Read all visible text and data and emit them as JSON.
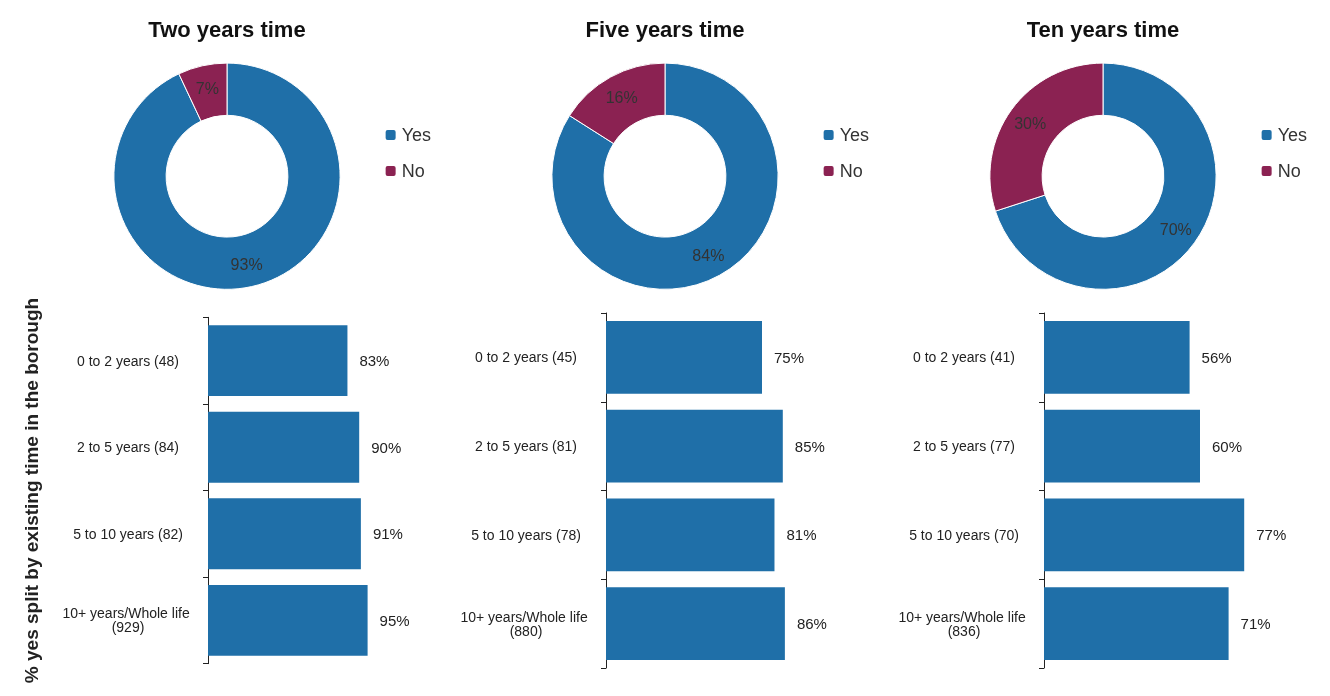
{
  "chart_data": [
    {
      "type": "donut",
      "title": "Two years time",
      "categories": [
        "Yes",
        "No"
      ],
      "values": [
        93,
        7
      ],
      "colors": [
        "#1f6fa8",
        "#8b2252"
      ],
      "legend": "right",
      "value_labels": [
        "93%",
        "7%"
      ]
    },
    {
      "type": "donut",
      "title": "Five years time",
      "categories": [
        "Yes",
        "No"
      ],
      "values": [
        84,
        16
      ],
      "colors": [
        "#1f6fa8",
        "#8b2252"
      ],
      "legend": "right",
      "value_labels": [
        "84%",
        "16%"
      ]
    },
    {
      "type": "donut",
      "title": "Ten years time",
      "categories": [
        "Yes",
        "No"
      ],
      "values": [
        70,
        30
      ],
      "colors": [
        "#1f6fa8",
        "#8b2252"
      ],
      "legend": "right",
      "value_labels": [
        "70%",
        "30%"
      ]
    },
    {
      "type": "bar",
      "orientation": "horizontal",
      "ylabel": "% yes split by existing time in the borough",
      "categories": [
        "0 to 2 years (48)",
        "2 to 5 years (84)",
        "5 to 10 years (82)",
        "10+ years/Whole life (929)"
      ],
      "values": [
        83,
        90,
        91,
        95
      ],
      "color": "#1f6fa8",
      "value_labels": [
        "83%",
        "90%",
        "91%",
        "95%"
      ],
      "tick_labels": "y"
    },
    {
      "type": "bar",
      "orientation": "horizontal",
      "categories": [
        "0 to 2 years (45)",
        "2 to 5 years (81)",
        "5 to 10 years (78)",
        "10+ years/Whole life (880)"
      ],
      "values": [
        75,
        85,
        81,
        86
      ],
      "color": "#1f6fa8",
      "value_labels": [
        "75%",
        "85%",
        "81%",
        "86%"
      ],
      "tick_labels": "y"
    },
    {
      "type": "bar",
      "orientation": "horizontal",
      "categories": [
        "0 to 2 years (41)",
        "2 to 5 years (77)",
        "5 to 10 years (70)",
        "10+ years/Whole life (836)"
      ],
      "values": [
        56,
        60,
        77,
        71
      ],
      "color": "#1f6fa8",
      "value_labels": [
        "56%",
        "60%",
        "77%",
        "71%"
      ],
      "tick_labels": "y"
    }
  ]
}
